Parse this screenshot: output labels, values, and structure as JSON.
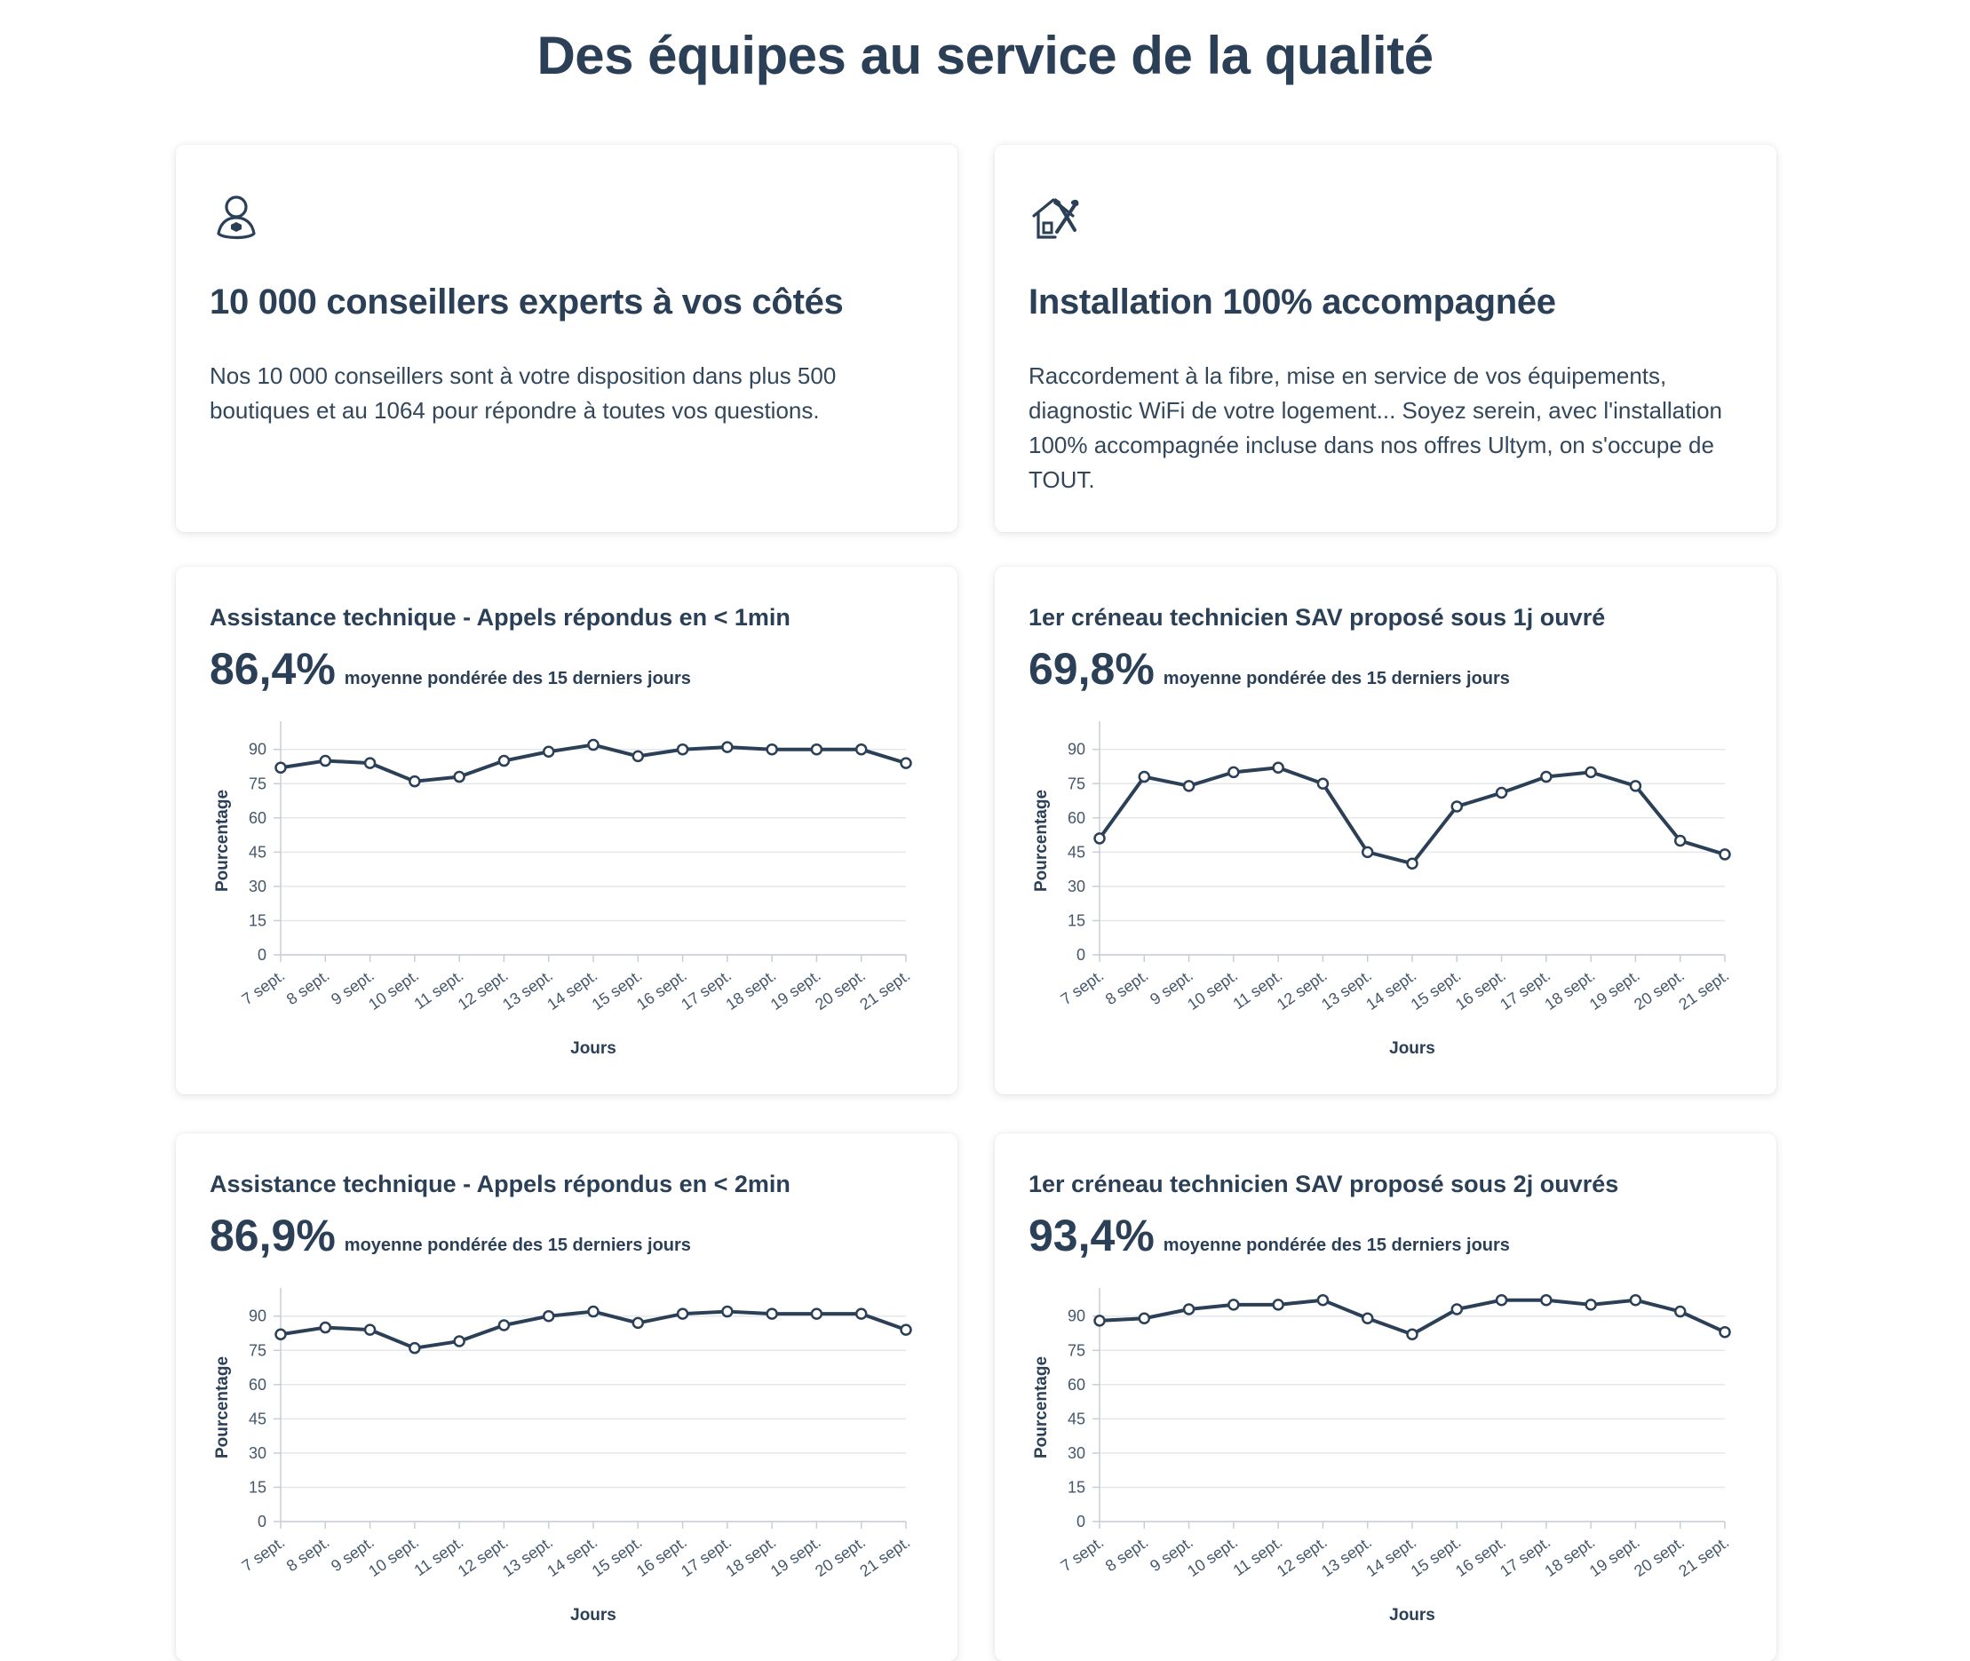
{
  "page": {
    "title": "Des équipes au service de la qualité"
  },
  "info_cards": [
    {
      "icon": "advisor-icon",
      "title": "10 000 conseillers experts à vos côtés",
      "text": "Nos 10 000 conseillers sont à votre disposition dans plus 500 boutiques et au 1064 pour répondre à toutes vos questions."
    },
    {
      "icon": "house-tools-icon",
      "title": "Installation 100% accompagnée",
      "text": "Raccordement à la fibre, mise en service de vos équipements, diagnostic WiFi de votre logement... Soyez serein, avec l'installation 100% accompagnée incluse dans nos offres Ultym, on s'occupe de TOUT."
    }
  ],
  "chart_data": [
    {
      "type": "line",
      "title": "Assistance technique - Appels répondus en < 1min",
      "stat_value": "86,4%",
      "stat_caption": "moyenne pondérée des 15 derniers jours",
      "xlabel": "Jours",
      "ylabel": "Pourcentage",
      "ylim": [
        0,
        100
      ],
      "yticks": [
        0,
        15,
        30,
        45,
        60,
        75,
        90
      ],
      "categories": [
        "7 sept.",
        "8 sept.",
        "9 sept.",
        "10 sept.",
        "11 sept.",
        "12 sept.",
        "13 sept.",
        "14 sept.",
        "15 sept.",
        "16 sept.",
        "17 sept.",
        "18 sept.",
        "19 sept.",
        "20 sept.",
        "21 sept."
      ],
      "values": [
        82,
        85,
        84,
        76,
        78,
        85,
        89,
        92,
        87,
        90,
        91,
        90,
        90,
        90,
        84
      ],
      "grid": true,
      "color": "#2b4057"
    },
    {
      "type": "line",
      "title": "1er créneau technicien SAV proposé sous 1j ouvré",
      "stat_value": "69,8%",
      "stat_caption": "moyenne pondérée des 15 derniers jours",
      "xlabel": "Jours",
      "ylabel": "Pourcentage",
      "ylim": [
        0,
        100
      ],
      "yticks": [
        0,
        15,
        30,
        45,
        60,
        75,
        90
      ],
      "categories": [
        "7 sept.",
        "8 sept.",
        "9 sept.",
        "10 sept.",
        "11 sept.",
        "12 sept.",
        "13 sept.",
        "14 sept.",
        "15 sept.",
        "16 sept.",
        "17 sept.",
        "18 sept.",
        "19 sept.",
        "20 sept.",
        "21 sept."
      ],
      "values": [
        51,
        78,
        74,
        80,
        82,
        75,
        45,
        40,
        65,
        71,
        78,
        80,
        74,
        50,
        44
      ],
      "grid": true,
      "color": "#2b4057"
    },
    {
      "type": "line",
      "title": "Assistance technique - Appels répondus en < 2min",
      "stat_value": "86,9%",
      "stat_caption": "moyenne pondérée des 15 derniers jours",
      "xlabel": "Jours",
      "ylabel": "Pourcentage",
      "ylim": [
        0,
        100
      ],
      "yticks": [
        0,
        15,
        30,
        45,
        60,
        75,
        90
      ],
      "categories": [
        "7 sept.",
        "8 sept.",
        "9 sept.",
        "10 sept.",
        "11 sept.",
        "12 sept.",
        "13 sept.",
        "14 sept.",
        "15 sept.",
        "16 sept.",
        "17 sept.",
        "18 sept.",
        "19 sept.",
        "20 sept.",
        "21 sept."
      ],
      "values": [
        82,
        85,
        84,
        76,
        79,
        86,
        90,
        92,
        87,
        91,
        92,
        91,
        91,
        91,
        84
      ],
      "grid": true,
      "color": "#2b4057"
    },
    {
      "type": "line",
      "title": "1er créneau technicien SAV proposé sous 2j ouvrés",
      "stat_value": "93,4%",
      "stat_caption": "moyenne pondérée des 15 derniers jours",
      "xlabel": "Jours",
      "ylabel": "Pourcentage",
      "ylim": [
        0,
        100
      ],
      "yticks": [
        0,
        15,
        30,
        45,
        60,
        75,
        90
      ],
      "categories": [
        "7 sept.",
        "8 sept.",
        "9 sept.",
        "10 sept.",
        "11 sept.",
        "12 sept.",
        "13 sept.",
        "14 sept.",
        "15 sept.",
        "16 sept.",
        "17 sept.",
        "18 sept.",
        "19 sept.",
        "20 sept.",
        "21 sept."
      ],
      "values": [
        88,
        89,
        93,
        95,
        95,
        97,
        89,
        82,
        93,
        97,
        97,
        95,
        97,
        92,
        83
      ],
      "grid": true,
      "color": "#2b4057"
    }
  ]
}
